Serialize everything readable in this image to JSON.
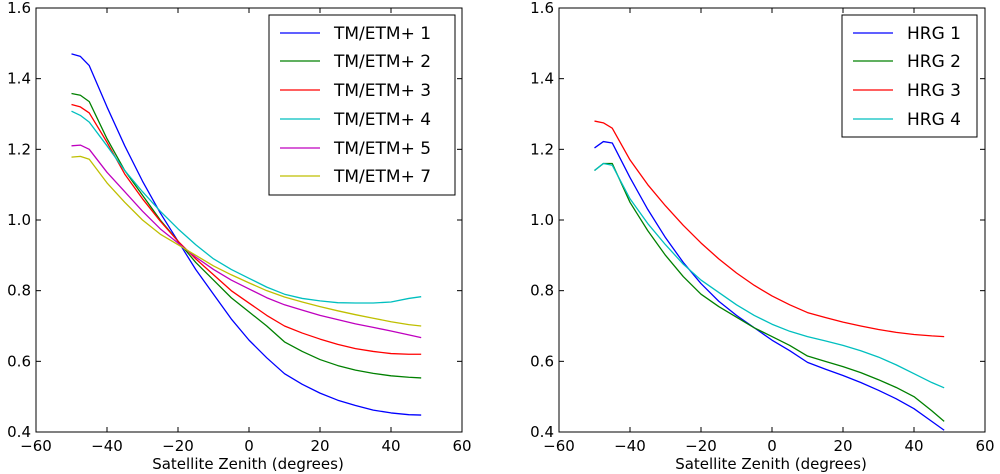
{
  "chart_data": [
    {
      "type": "line",
      "title": "",
      "xlabel": "Satellite Zenith (degrees)",
      "ylabel": "",
      "xlim": [
        -60,
        60
      ],
      "ylim": [
        0.4,
        1.6
      ],
      "xticks": [
        -60,
        -40,
        -20,
        0,
        20,
        40,
        60
      ],
      "yticks": [
        0.4,
        0.6,
        0.8,
        1.0,
        1.2,
        1.4,
        1.6
      ],
      "xtick_labels": [
        "−60",
        "−40",
        "−20",
        "0",
        "20",
        "40",
        "60"
      ],
      "ytick_labels": [
        "0.4",
        "0.6",
        "0.8",
        "1.0",
        "1.2",
        "1.4",
        "1.6"
      ],
      "legend_position": "top-right",
      "grid": false,
      "x": [
        -50,
        -47.5,
        -45,
        -40,
        -35,
        -30,
        -25,
        -20,
        -15,
        -10,
        -5,
        0,
        5,
        10,
        15,
        20,
        25,
        30,
        35,
        40,
        45,
        48.5
      ],
      "series": [
        {
          "name": "TM/ETM+ 1",
          "color": "#0000ff",
          "values": [
            1.47,
            1.463,
            1.437,
            1.32,
            1.21,
            1.11,
            1.02,
            0.94,
            0.86,
            0.79,
            0.72,
            0.66,
            0.61,
            0.565,
            0.535,
            0.51,
            0.49,
            0.475,
            0.462,
            0.454,
            0.449,
            0.448
          ]
        },
        {
          "name": "TM/ETM+ 2",
          "color": "#008000",
          "values": [
            1.358,
            1.353,
            1.335,
            1.23,
            1.14,
            1.07,
            1.0,
            0.94,
            0.88,
            0.83,
            0.78,
            0.74,
            0.7,
            0.655,
            0.628,
            0.605,
            0.588,
            0.575,
            0.566,
            0.559,
            0.555,
            0.553
          ]
        },
        {
          "name": "TM/ETM+ 3",
          "color": "#ff0000",
          "values": [
            1.327,
            1.32,
            1.303,
            1.22,
            1.13,
            1.06,
            0.997,
            0.94,
            0.89,
            0.845,
            0.8,
            0.765,
            0.73,
            0.7,
            0.68,
            0.663,
            0.648,
            0.636,
            0.628,
            0.622,
            0.62,
            0.62
          ]
        },
        {
          "name": "TM/ETM+ 4",
          "color": "#00bfbf",
          "values": [
            1.308,
            1.296,
            1.277,
            1.21,
            1.14,
            1.08,
            1.025,
            0.975,
            0.93,
            0.89,
            0.86,
            0.835,
            0.81,
            0.79,
            0.778,
            0.771,
            0.766,
            0.765,
            0.765,
            0.768,
            0.778,
            0.783
          ]
        },
        {
          "name": "TM/ETM+ 5",
          "color": "#bf00bf",
          "values": [
            1.21,
            1.212,
            1.2,
            1.135,
            1.08,
            1.025,
            0.975,
            0.935,
            0.895,
            0.86,
            0.83,
            0.805,
            0.78,
            0.76,
            0.745,
            0.73,
            0.718,
            0.706,
            0.696,
            0.686,
            0.675,
            0.667
          ]
        },
        {
          "name": "TM/ETM+ 7",
          "color": "#bfbf00",
          "values": [
            1.178,
            1.18,
            1.172,
            1.105,
            1.05,
            1.0,
            0.96,
            0.93,
            0.9,
            0.87,
            0.845,
            0.822,
            0.8,
            0.782,
            0.768,
            0.755,
            0.743,
            0.732,
            0.722,
            0.712,
            0.704,
            0.7
          ]
        }
      ]
    },
    {
      "type": "line",
      "title": "",
      "xlabel": "Satellite Zenith (degrees)",
      "ylabel": "",
      "xlim": [
        -60,
        60
      ],
      "ylim": [
        0.4,
        1.6
      ],
      "xticks": [
        -60,
        -40,
        -20,
        0,
        20,
        40,
        60
      ],
      "yticks": [
        0.4,
        0.6,
        0.8,
        1.0,
        1.2,
        1.4,
        1.6
      ],
      "xtick_labels": [
        "−60",
        "−40",
        "−20",
        "0",
        "20",
        "40",
        "60"
      ],
      "ytick_labels": [
        "0.4",
        "0.6",
        "0.8",
        "1.0",
        "1.2",
        "1.4",
        "1.6"
      ],
      "legend_position": "top-right",
      "grid": false,
      "x": [
        -50,
        -47.5,
        -45,
        -40,
        -35,
        -30,
        -25,
        -20,
        -15,
        -10,
        -5,
        0,
        5,
        10,
        15,
        20,
        25,
        30,
        35,
        40,
        45,
        48.5
      ],
      "series": [
        {
          "name": "HRG 1",
          "color": "#0000ff",
          "values": [
            1.204,
            1.222,
            1.218,
            1.12,
            1.03,
            0.95,
            0.88,
            0.82,
            0.77,
            0.73,
            0.695,
            0.66,
            0.63,
            0.597,
            0.578,
            0.56,
            0.54,
            0.518,
            0.494,
            0.466,
            0.43,
            0.405
          ]
        },
        {
          "name": "HRG 2",
          "color": "#008000",
          "values": [
            1.14,
            1.16,
            1.16,
            1.05,
            0.97,
            0.9,
            0.84,
            0.79,
            0.755,
            0.725,
            0.695,
            0.67,
            0.645,
            0.615,
            0.6,
            0.585,
            0.568,
            0.548,
            0.526,
            0.5,
            0.46,
            0.43
          ]
        },
        {
          "name": "HRG 3",
          "color": "#ff0000",
          "values": [
            1.28,
            1.275,
            1.26,
            1.17,
            1.1,
            1.04,
            0.985,
            0.935,
            0.89,
            0.85,
            0.815,
            0.785,
            0.76,
            0.738,
            0.724,
            0.711,
            0.7,
            0.69,
            0.682,
            0.676,
            0.672,
            0.67
          ]
        },
        {
          "name": "HRG 4",
          "color": "#00bfbf",
          "values": [
            1.14,
            1.16,
            1.155,
            1.06,
            0.99,
            0.93,
            0.875,
            0.83,
            0.795,
            0.76,
            0.73,
            0.705,
            0.685,
            0.67,
            0.658,
            0.645,
            0.63,
            0.612,
            0.59,
            0.565,
            0.54,
            0.525
          ]
        }
      ]
    }
  ]
}
